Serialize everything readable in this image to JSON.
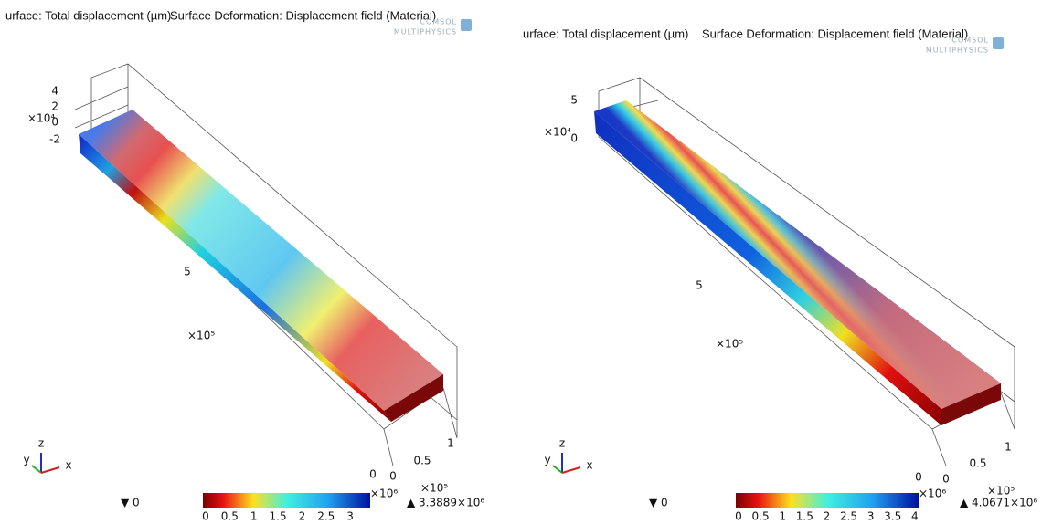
{
  "panels": [
    {
      "plot_expression": "urface: Total displacement (µm)",
      "deformation": "Surface Deformation: Displacement field (Material)",
      "logo": [
        "COMSOL",
        "MULTIPHYSICS"
      ],
      "z_ticks": [
        4,
        2,
        0,
        -2
      ],
      "z_exponent": "×10⁴",
      "y_ticks": [
        5,
        0
      ],
      "y_exponent": "×10⁵",
      "x_ticks": [
        0,
        0.5,
        1
      ],
      "x_exponent": "×10⁵",
      "min_label": "▼ 0",
      "max_label": "▲ 3.3889×10⁶",
      "colorbar_ticks": [
        0,
        0.5,
        1,
        1.5,
        2,
        2.5,
        3
      ],
      "colorbar_exponent": "×10⁶",
      "triad": [
        "z",
        "y",
        "x"
      ]
    },
    {
      "plot_expression": "urface: Total displacement (µm)",
      "deformation": "Surface Deformation: Displacement field (Material)",
      "logo": [
        "COMSOL",
        "MULTIPHYSICS"
      ],
      "z_ticks": [
        5,
        0
      ],
      "z_exponent": "×10⁴",
      "y_ticks": [
        5,
        0
      ],
      "y_exponent": "×10⁵",
      "x_ticks": [
        0,
        0.5,
        1
      ],
      "x_exponent": "×10⁵",
      "min_label": "▼ 0",
      "max_label": "▲ 4.0671×10⁶",
      "colorbar_ticks": [
        0,
        0.5,
        1,
        1.5,
        2,
        2.5,
        3,
        3.5,
        4
      ],
      "colorbar_exponent": "×10⁶",
      "triad": [
        "z",
        "y",
        "x"
      ]
    }
  ]
}
